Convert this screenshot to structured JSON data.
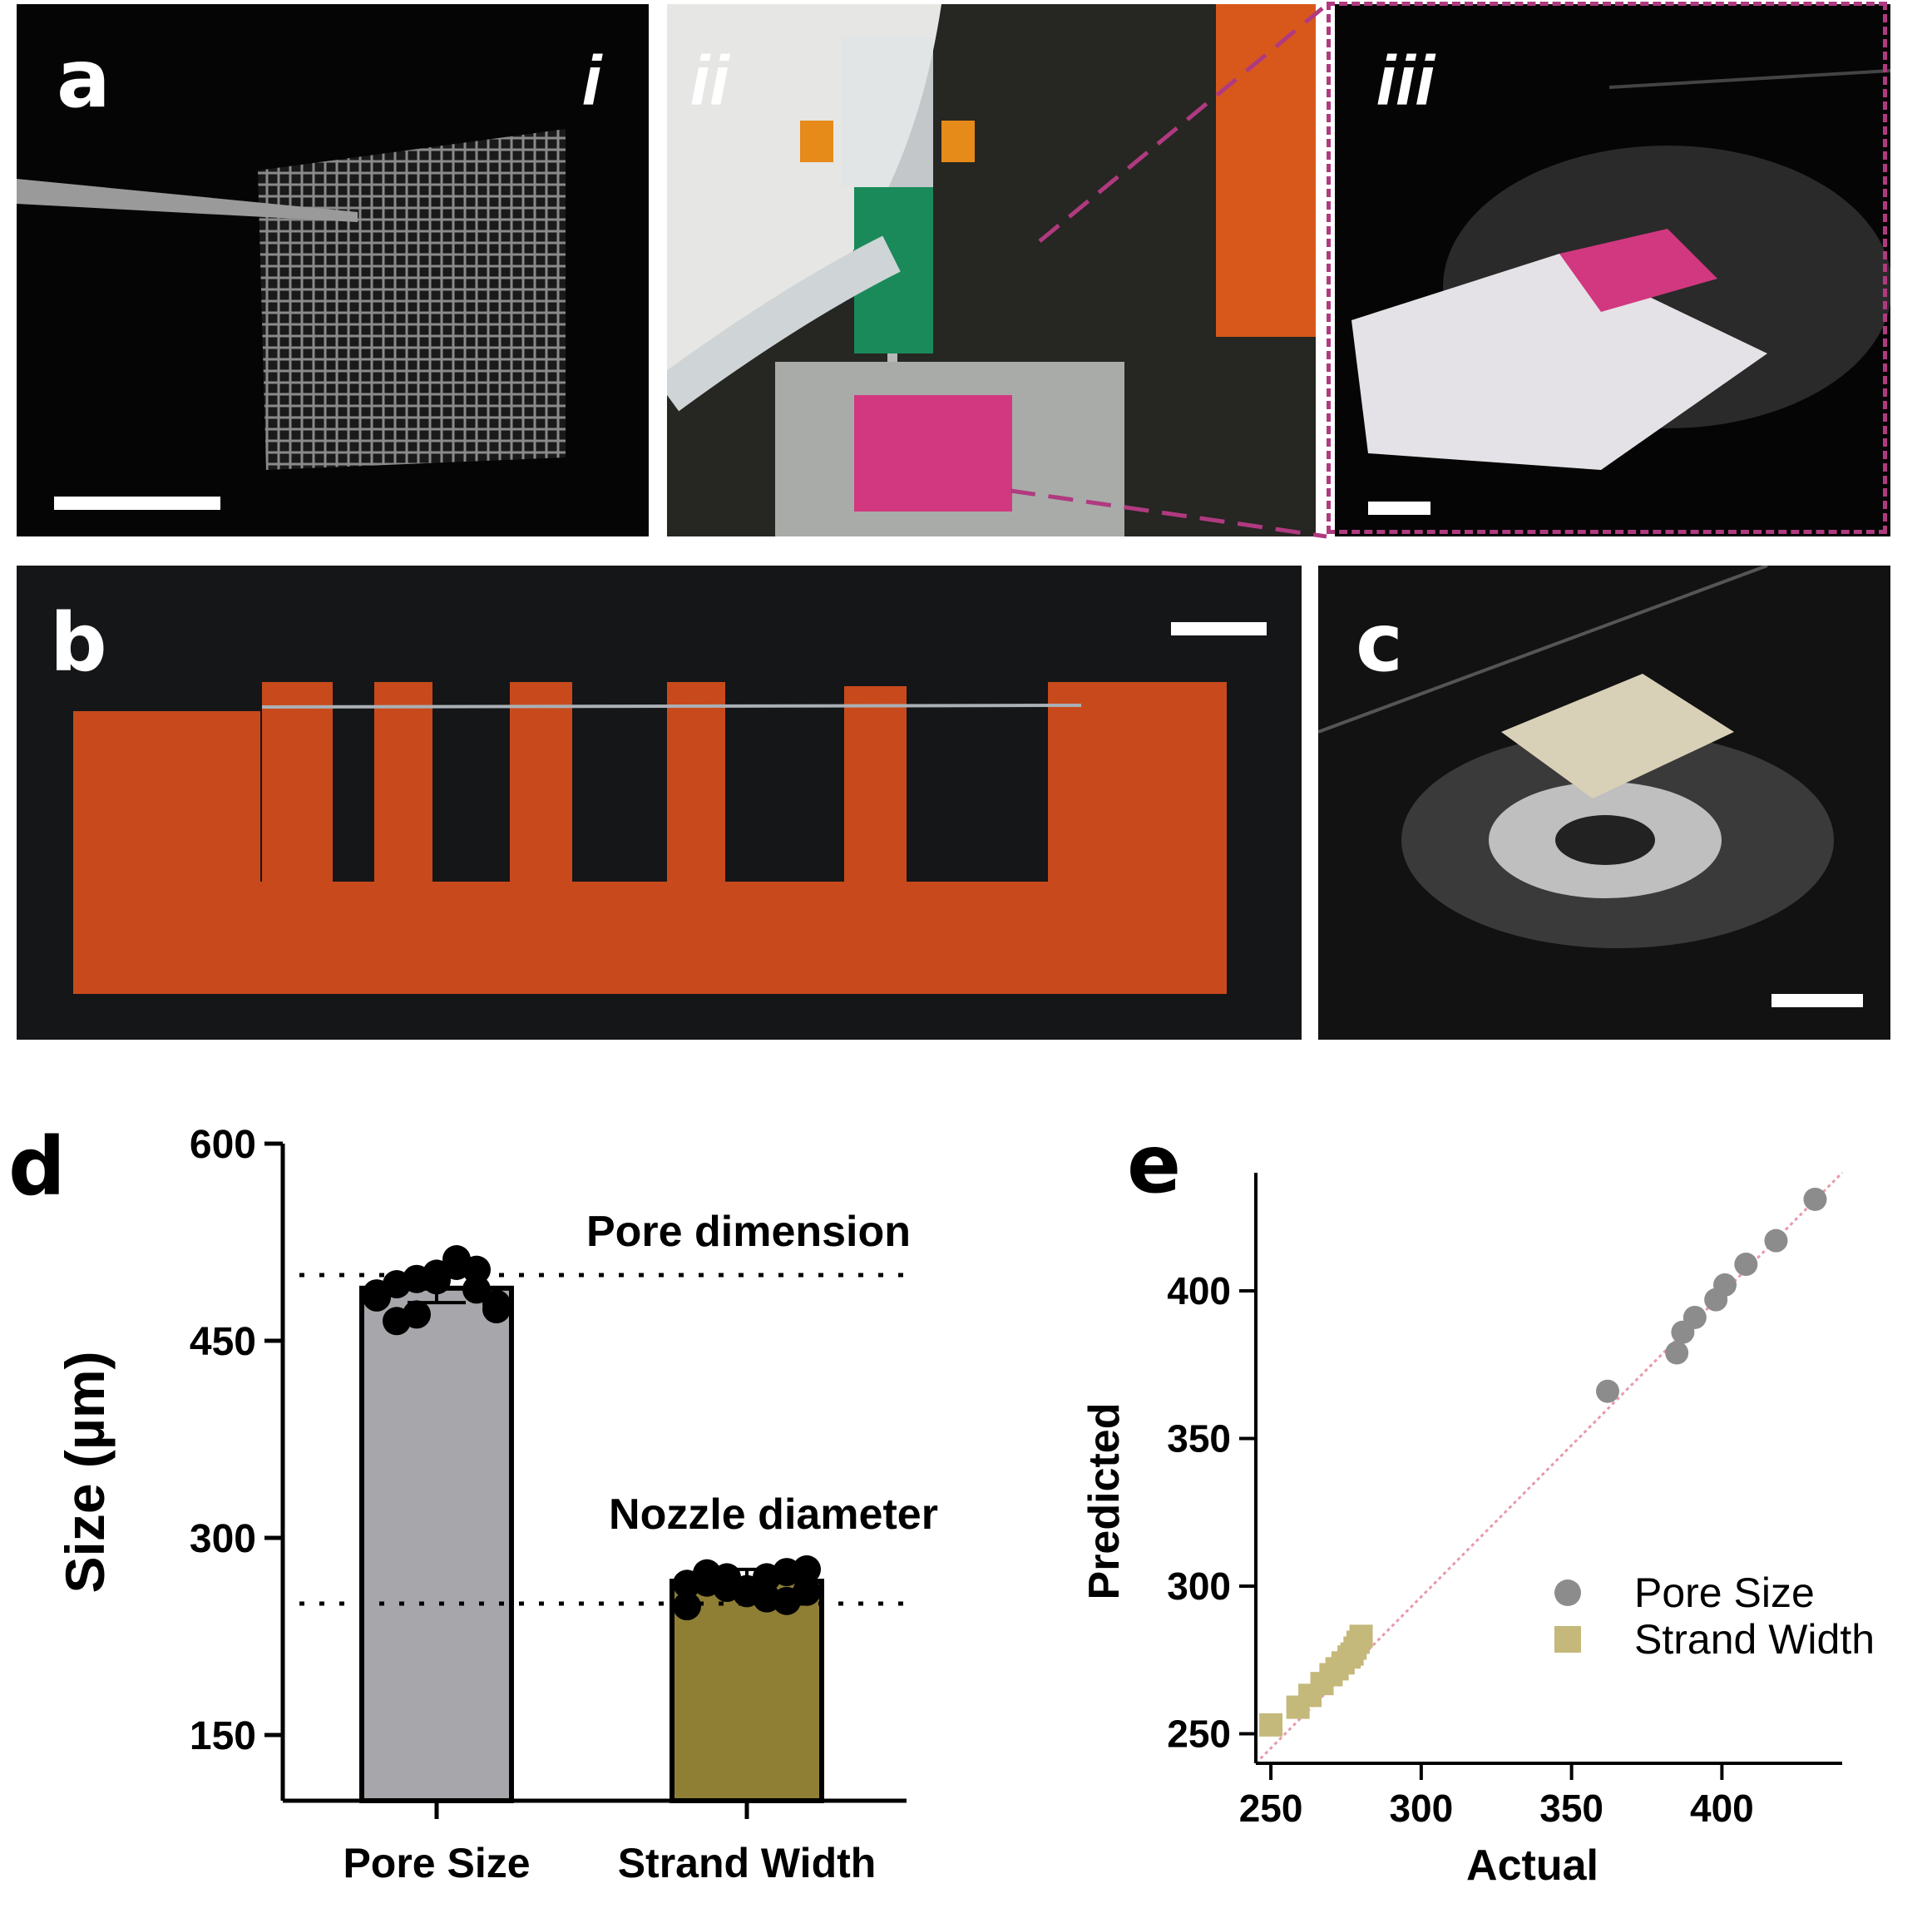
{
  "panels": {
    "a_label": "a",
    "a_sub_i": "i",
    "a_sub_ii": "ii",
    "a_sub_iii": "iii",
    "b_label": "b",
    "c_label": "c",
    "d_label": "d",
    "e_label": "e"
  },
  "colors": {
    "pore_bar": "#a7a6ab",
    "strand_bar": "#8e7f35",
    "pore_scatter": "#8c8c8c",
    "strand_scatter": "#c4b97a",
    "highlight_dash": "#b03a80",
    "scaffold_orange": "#c84a1c",
    "gel_pink": "#d2387f",
    "identity_line": "#e79aaa"
  },
  "chart_data": [
    {
      "type": "bar",
      "categories": [
        "Pore Size",
        "Strand Width"
      ],
      "values": [
        490,
        267
      ],
      "error": [
        11,
        9
      ],
      "points": {
        "Pore Size": [
          483,
          493,
          497,
          501,
          507,
          489,
          478,
          486,
          465,
          470,
          496,
          512,
          504,
          474
        ],
        "Strand Width": [
          265,
          273,
          262,
          258,
          270,
          252,
          276,
          248,
          266,
          270,
          261,
          254,
          274,
          259
        ]
      },
      "reference_lines": [
        {
          "label": "Pore dimension",
          "value": 500
        },
        {
          "label": "Nozzle diameter",
          "value": 250
        }
      ],
      "ylabel": "Size (µm)",
      "xlabel": "",
      "ylim": [
        100,
        600
      ],
      "yticks": [
        150,
        300,
        450,
        600
      ],
      "grid": false
    },
    {
      "type": "scatter",
      "series": [
        {
          "name": "Pore Size",
          "x": [
            362,
            385,
            387,
            391,
            398,
            401,
            408,
            418,
            431
          ],
          "y": [
            366,
            379,
            386,
            391,
            397,
            402,
            409,
            417,
            431
          ]
        },
        {
          "name": "Strand Width",
          "x": [
            250,
            259,
            263,
            267,
            270,
            272,
            274,
            276,
            277,
            278,
            279,
            280
          ],
          "y": [
            253,
            259,
            263,
            267,
            270,
            272,
            274,
            276,
            277,
            279,
            281,
            283
          ]
        }
      ],
      "identity_line": true,
      "xlabel": "Actual",
      "ylabel": "Predicted",
      "xlim": [
        245,
        440
      ],
      "ylim": [
        240,
        440
      ],
      "xticks": [
        250,
        300,
        350,
        400
      ],
      "yticks": [
        250,
        300,
        350,
        400
      ],
      "legend": "right",
      "grid": false
    }
  ]
}
